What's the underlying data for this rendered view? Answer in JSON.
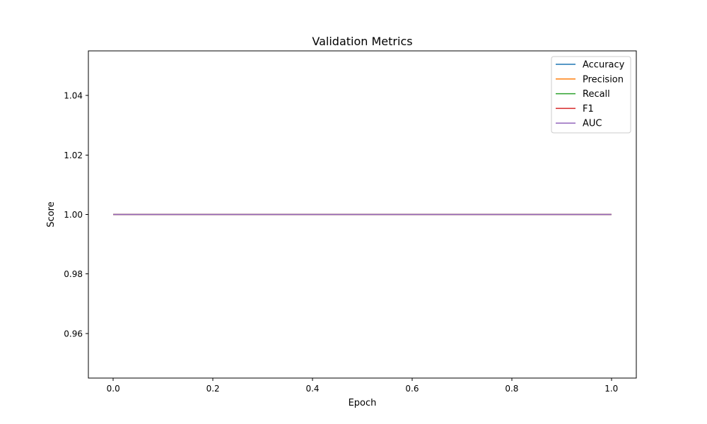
{
  "chart_data": {
    "type": "line",
    "title": "Validation Metrics",
    "xlabel": "Epoch",
    "ylabel": "Score",
    "xlim": [
      -0.05,
      1.05
    ],
    "ylim": [
      0.945,
      1.055
    ],
    "x_ticks": [
      0.0,
      0.2,
      0.4,
      0.6,
      0.8,
      1.0
    ],
    "x_tick_labels": [
      "0.0",
      "0.2",
      "0.4",
      "0.6",
      "0.8",
      "1.0"
    ],
    "y_ticks": [
      0.96,
      0.98,
      1.0,
      1.02,
      1.04
    ],
    "y_tick_labels": [
      "0.96",
      "0.98",
      "1.00",
      "1.02",
      "1.04"
    ],
    "grid": false,
    "legend_position": "top-right",
    "x": [
      0,
      1
    ],
    "series": [
      {
        "name": "Accuracy",
        "color": "#1f77b4",
        "values": [
          1.0,
          1.0
        ]
      },
      {
        "name": "Precision",
        "color": "#ff7f0e",
        "values": [
          1.0,
          1.0
        ]
      },
      {
        "name": "Recall",
        "color": "#2ca02c",
        "values": [
          1.0,
          1.0
        ]
      },
      {
        "name": "F1",
        "color": "#d62728",
        "values": [
          1.0,
          1.0
        ]
      },
      {
        "name": "AUC",
        "color": "#9467bd",
        "values": [
          1.0,
          1.0
        ]
      }
    ]
  }
}
